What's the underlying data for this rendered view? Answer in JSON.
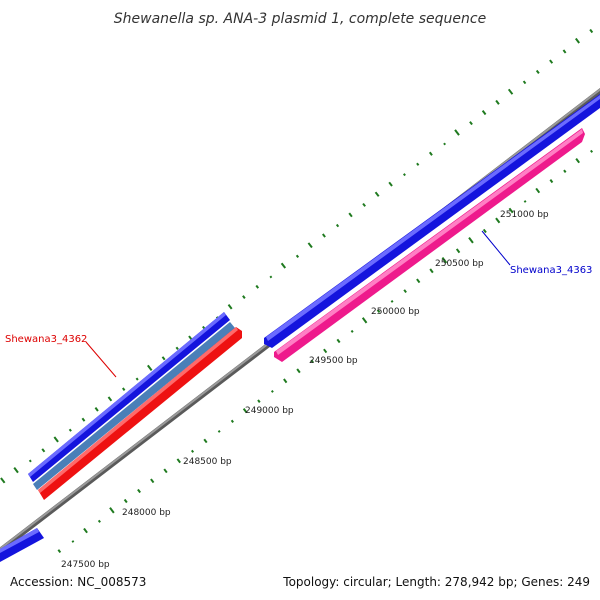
{
  "title": "Shewanella sp. ANA-3 plasmid 1, complete sequence",
  "footer": {
    "accession": "Accession: NC_008573",
    "summary": "Topology: circular; Length: 278,942 bp; Genes: 249"
  },
  "ticks": [
    "247500 bp",
    "248000 bp",
    "248500 bp",
    "249000 bp",
    "249500 bp",
    "250000 bp",
    "250500 bp",
    "251000 bp"
  ],
  "genes": [
    {
      "label": "Shewana3_4362",
      "color": "#dd0000"
    },
    {
      "label": "Shewana3_4363",
      "color": "#0000cc"
    }
  ],
  "colors": {
    "backbone": "#888888",
    "forward_cds": "#1010dd",
    "reverse_cds": "#ee1111",
    "reverse_cds_2": "#ee1a8c",
    "rna": "#4a7fb8",
    "gc_marks": "#1f7a1f"
  }
}
